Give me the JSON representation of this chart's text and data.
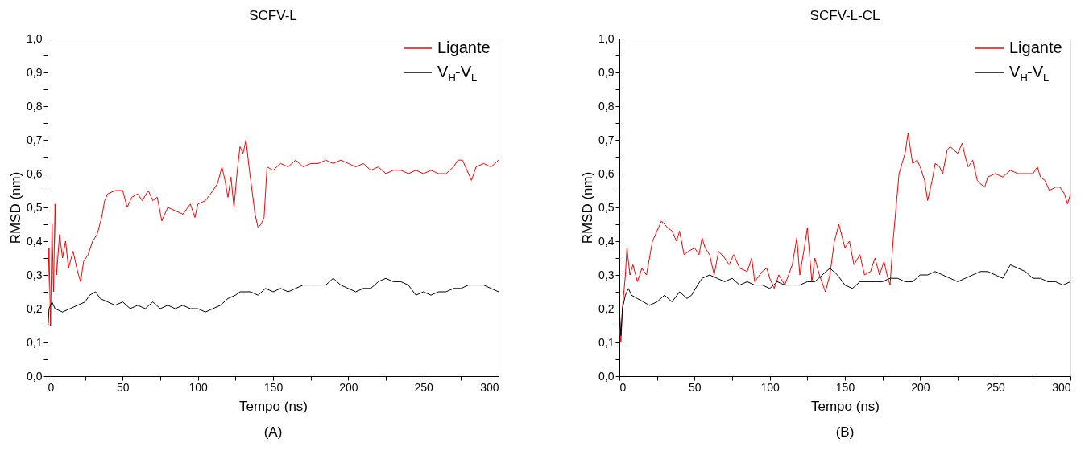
{
  "chart_data": [
    {
      "type": "line",
      "title": "SCFV-L",
      "xlabel": "Tempo (ns)",
      "ylabel": "RMSD (nm)",
      "annotations": [
        "(A)"
      ],
      "legend": "top right",
      "grid": false,
      "line_style": "solid",
      "xlim": [
        0,
        300
      ],
      "ylim": [
        0,
        1.0
      ],
      "xticks": [
        0,
        {
          "value": 25,
          "label": null
        },
        50,
        {
          "value": 75,
          "label": null
        },
        100,
        {
          "value": 125,
          "label": null
        },
        150,
        {
          "value": 175,
          "label": null
        },
        200,
        {
          "value": 225,
          "label": null
        },
        250,
        {
          "value": 275,
          "label": null
        },
        300
      ],
      "yticks": [
        {
          "value": 0,
          "label": "0,0"
        },
        {
          "value": 0.05,
          "label": null
        },
        {
          "value": 0.1,
          "label": "0,1"
        },
        {
          "value": 0.15,
          "label": null
        },
        {
          "value": 0.2,
          "label": "0,2"
        },
        {
          "value": 0.25,
          "label": null
        },
        {
          "value": 0.3,
          "label": "0,3"
        },
        {
          "value": 0.35,
          "label": null
        },
        {
          "value": 0.4,
          "label": "0,4"
        },
        {
          "value": 0.45,
          "label": null
        },
        {
          "value": 0.5,
          "label": "0,5"
        },
        {
          "value": 0.55,
          "label": null
        },
        {
          "value": 0.6,
          "label": "0,6"
        },
        {
          "value": 0.65,
          "label": null
        },
        {
          "value": 0.7,
          "label": "0,7"
        },
        {
          "value": 0.75,
          "label": null
        },
        {
          "value": 0.8,
          "label": "0,8"
        },
        {
          "value": 0.85,
          "label": null
        },
        {
          "value": 0.9,
          "label": "0,9"
        },
        {
          "value": 0.95,
          "label": null
        },
        {
          "value": 1.0,
          "label": "1,0"
        }
      ],
      "series": [
        {
          "name": "Ligante",
          "color": "#ff0000",
          "x": [
            0,
            1,
            2,
            3,
            4,
            5,
            6,
            8,
            10,
            12,
            14,
            17,
            20,
            22,
            24,
            27,
            30,
            33,
            36,
            38,
            40,
            45,
            50,
            53,
            56,
            60,
            63,
            67,
            70,
            73,
            76,
            80,
            85,
            90,
            95,
            98,
            100,
            105,
            110,
            113,
            116,
            118,
            120,
            122,
            124,
            126,
            128,
            130,
            132,
            134,
            136,
            138,
            140,
            142,
            144,
            146,
            150,
            155,
            160,
            165,
            170,
            175,
            180,
            185,
            190,
            195,
            200,
            205,
            210,
            215,
            220,
            225,
            230,
            235,
            240,
            245,
            250,
            255,
            260,
            265,
            270,
            273,
            276,
            280,
            282,
            285,
            290,
            295,
            300
          ],
          "values": [
            0.2,
            0.38,
            0.15,
            0.45,
            0.25,
            0.51,
            0.3,
            0.42,
            0.35,
            0.4,
            0.32,
            0.37,
            0.31,
            0.28,
            0.34,
            0.36,
            0.4,
            0.42,
            0.47,
            0.52,
            0.54,
            0.55,
            0.55,
            0.5,
            0.53,
            0.54,
            0.52,
            0.55,
            0.52,
            0.53,
            0.46,
            0.5,
            0.49,
            0.48,
            0.51,
            0.47,
            0.51,
            0.52,
            0.55,
            0.57,
            0.62,
            0.58,
            0.53,
            0.59,
            0.5,
            0.6,
            0.68,
            0.66,
            0.7,
            0.62,
            0.55,
            0.48,
            0.44,
            0.45,
            0.47,
            0.62,
            0.61,
            0.63,
            0.62,
            0.64,
            0.62,
            0.63,
            0.63,
            0.64,
            0.63,
            0.64,
            0.63,
            0.62,
            0.63,
            0.61,
            0.62,
            0.6,
            0.61,
            0.61,
            0.6,
            0.61,
            0.6,
            0.61,
            0.6,
            0.6,
            0.62,
            0.64,
            0.64,
            0.6,
            0.58,
            0.62,
            0.63,
            0.62,
            0.64
          ]
        },
        {
          "name": "V$_{H}$-V$_{L}$",
          "color": "#000000",
          "x": [
            0,
            1,
            3,
            5,
            10,
            15,
            20,
            25,
            28,
            32,
            35,
            40,
            45,
            50,
            55,
            60,
            65,
            70,
            75,
            80,
            85,
            90,
            95,
            100,
            105,
            110,
            115,
            120,
            125,
            128,
            135,
            140,
            145,
            150,
            155,
            160,
            165,
            170,
            175,
            180,
            185,
            190,
            195,
            200,
            205,
            210,
            215,
            220,
            225,
            230,
            235,
            240,
            245,
            250,
            255,
            260,
            265,
            270,
            275,
            280,
            285,
            290,
            295,
            300
          ],
          "values": [
            0.12,
            0.2,
            0.22,
            0.2,
            0.19,
            0.2,
            0.21,
            0.22,
            0.24,
            0.25,
            0.23,
            0.22,
            0.21,
            0.22,
            0.2,
            0.21,
            0.2,
            0.22,
            0.2,
            0.21,
            0.2,
            0.21,
            0.2,
            0.2,
            0.19,
            0.2,
            0.21,
            0.23,
            0.24,
            0.25,
            0.25,
            0.24,
            0.26,
            0.25,
            0.26,
            0.25,
            0.26,
            0.27,
            0.27,
            0.27,
            0.27,
            0.29,
            0.27,
            0.26,
            0.25,
            0.26,
            0.26,
            0.28,
            0.29,
            0.28,
            0.28,
            0.27,
            0.24,
            0.25,
            0.24,
            0.25,
            0.25,
            0.26,
            0.26,
            0.27,
            0.27,
            0.27,
            0.26,
            0.25
          ]
        }
      ]
    },
    {
      "type": "line",
      "title": "SCFV-L-CL",
      "xlabel": "Tempo (ns)",
      "ylabel": "RMSD (nm)",
      "annotations": [
        "(B)"
      ],
      "legend": "top right",
      "grid": false,
      "line_style": "solid",
      "xlim": [
        0,
        300
      ],
      "ylim": [
        0,
        1.0
      ],
      "xticks": [
        0,
        {
          "value": 25,
          "label": null
        },
        50,
        {
          "value": 75,
          "label": null
        },
        100,
        {
          "value": 125,
          "label": null
        },
        150,
        {
          "value": 175,
          "label": null
        },
        200,
        {
          "value": 225,
          "label": null
        },
        250,
        {
          "value": 275,
          "label": null
        },
        300
      ],
      "yticks": [
        {
          "value": 0,
          "label": "0,0"
        },
        {
          "value": 0.05,
          "label": null
        },
        {
          "value": 0.1,
          "label": "0,1"
        },
        {
          "value": 0.15,
          "label": null
        },
        {
          "value": 0.2,
          "label": "0,2"
        },
        {
          "value": 0.25,
          "label": null
        },
        {
          "value": 0.3,
          "label": "0,3"
        },
        {
          "value": 0.35,
          "label": null
        },
        {
          "value": 0.4,
          "label": "0,4"
        },
        {
          "value": 0.45,
          "label": null
        },
        {
          "value": 0.5,
          "label": "0,5"
        },
        {
          "value": 0.55,
          "label": null
        },
        {
          "value": 0.6,
          "label": "0,6"
        },
        {
          "value": 0.65,
          "label": null
        },
        {
          "value": 0.7,
          "label": "0,7"
        },
        {
          "value": 0.75,
          "label": null
        },
        {
          "value": 0.8,
          "label": "0,8"
        },
        {
          "value": 0.85,
          "label": null
        },
        {
          "value": 0.9,
          "label": "0,9"
        },
        {
          "value": 0.95,
          "label": null
        },
        {
          "value": 1.0,
          "label": "1,0"
        }
      ],
      "series": [
        {
          "name": "Ligante",
          "color": "#ff0000",
          "x": [
            0,
            1,
            2,
            4,
            5,
            7,
            9,
            12,
            15,
            18,
            20,
            22,
            25,
            28,
            32,
            35,
            38,
            40,
            43,
            46,
            50,
            53,
            55,
            57,
            60,
            63,
            66,
            70,
            73,
            76,
            80,
            85,
            88,
            90,
            95,
            98,
            100,
            103,
            106,
            110,
            115,
            118,
            120,
            123,
            125,
            128,
            130,
            133,
            137,
            140,
            143,
            146,
            150,
            153,
            156,
            160,
            163,
            167,
            170,
            173,
            176,
            178,
            180,
            182,
            184,
            186,
            188,
            190,
            192,
            195,
            198,
            200,
            203,
            205,
            208,
            210,
            213,
            215,
            218,
            220,
            225,
            228,
            230,
            232,
            235,
            238,
            240,
            243,
            245,
            250,
            255,
            260,
            265,
            270,
            275,
            278,
            280,
            283,
            286,
            290,
            293,
            296,
            298,
            300
          ],
          "values": [
            0.15,
            0.1,
            0.2,
            0.3,
            0.38,
            0.3,
            0.33,
            0.28,
            0.32,
            0.3,
            0.35,
            0.4,
            0.43,
            0.46,
            0.44,
            0.43,
            0.4,
            0.43,
            0.36,
            0.37,
            0.38,
            0.36,
            0.41,
            0.38,
            0.36,
            0.3,
            0.37,
            0.35,
            0.33,
            0.36,
            0.32,
            0.31,
            0.35,
            0.28,
            0.31,
            0.32,
            0.29,
            0.26,
            0.3,
            0.27,
            0.33,
            0.41,
            0.3,
            0.38,
            0.44,
            0.28,
            0.35,
            0.3,
            0.25,
            0.3,
            0.4,
            0.45,
            0.38,
            0.4,
            0.33,
            0.36,
            0.3,
            0.31,
            0.35,
            0.3,
            0.34,
            0.3,
            0.27,
            0.4,
            0.5,
            0.6,
            0.63,
            0.66,
            0.72,
            0.63,
            0.64,
            0.62,
            0.58,
            0.52,
            0.58,
            0.63,
            0.62,
            0.6,
            0.67,
            0.68,
            0.66,
            0.69,
            0.65,
            0.62,
            0.64,
            0.58,
            0.57,
            0.56,
            0.59,
            0.6,
            0.59,
            0.61,
            0.6,
            0.6,
            0.6,
            0.62,
            0.59,
            0.58,
            0.55,
            0.56,
            0.56,
            0.54,
            0.51,
            0.54
          ]
        },
        {
          "name": "V$_{H}$-V$_{L}$",
          "color": "#000000",
          "x": [
            0,
            1,
            2,
            4,
            6,
            8,
            12,
            16,
            20,
            25,
            30,
            35,
            40,
            45,
            48,
            52,
            55,
            60,
            65,
            70,
            75,
            80,
            85,
            90,
            95,
            100,
            105,
            110,
            115,
            120,
            125,
            130,
            135,
            140,
            145,
            150,
            155,
            160,
            165,
            170,
            175,
            180,
            185,
            190,
            195,
            200,
            205,
            210,
            215,
            220,
            225,
            230,
            235,
            240,
            245,
            250,
            255,
            260,
            265,
            270,
            275,
            280,
            285,
            290,
            295,
            300
          ],
          "values": [
            0.2,
            0.12,
            0.2,
            0.24,
            0.26,
            0.24,
            0.23,
            0.22,
            0.21,
            0.22,
            0.24,
            0.22,
            0.25,
            0.23,
            0.24,
            0.27,
            0.29,
            0.3,
            0.29,
            0.28,
            0.29,
            0.27,
            0.28,
            0.27,
            0.27,
            0.26,
            0.28,
            0.27,
            0.27,
            0.27,
            0.28,
            0.28,
            0.3,
            0.32,
            0.3,
            0.27,
            0.26,
            0.28,
            0.28,
            0.28,
            0.28,
            0.29,
            0.29,
            0.28,
            0.28,
            0.3,
            0.3,
            0.31,
            0.3,
            0.29,
            0.28,
            0.29,
            0.3,
            0.31,
            0.31,
            0.3,
            0.29,
            0.33,
            0.32,
            0.31,
            0.29,
            0.29,
            0.28,
            0.28,
            0.27,
            0.28
          ]
        }
      ]
    }
  ]
}
